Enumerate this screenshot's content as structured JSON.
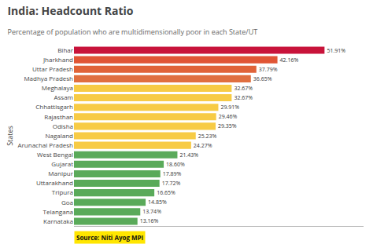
{
  "chart_data": {
    "type": "bar",
    "orientation": "horizontal",
    "title": "India: Headcount Ratio",
    "subtitle": "Percentage of population who are multidimensionally poor in each State/UT",
    "ylabel": "States",
    "annotations": [
      "Source: Niti Ayog MPI"
    ],
    "categories": [
      "Bihar",
      "Jharkhand",
      "Uttar Pradesh",
      "Madhya Pradesh",
      "Meghalaya",
      "Assam",
      "Chhattisgarh",
      "Rajasthan",
      "Odisha",
      "Nagaland",
      "Arunachal Pradesh",
      "West Bengal",
      "Gujarat",
      "Manipur",
      "Uttarakhand",
      "Tripura",
      "Goa",
      "Telangana",
      "Karnataka"
    ],
    "values": [
      51.91,
      42.16,
      37.79,
      36.65,
      32.67,
      32.67,
      29.91,
      29.46,
      29.35,
      25.23,
      24.27,
      21.43,
      18.6,
      17.89,
      17.72,
      16.65,
      14.85,
      13.74,
      13.16
    ],
    "value_labels": [
      "51.91%",
      "42.16%",
      "37.79%",
      "36.65%",
      "32.67%",
      "32.67%",
      "29.91%",
      "29.46%",
      "29.35%",
      "25.23%",
      "24.27%",
      "21.43%",
      "18.60%",
      "17.89%",
      "17.72%",
      "16.65%",
      "14.85%",
      "13.74%",
      "13.16%"
    ],
    "colors": [
      "#c8133a",
      "#e05535",
      "#e06338",
      "#e06f40",
      "#f7cb45",
      "#f7cb45",
      "#f7cb45",
      "#f7cb45",
      "#f7cb45",
      "#f7cb45",
      "#f7cb45",
      "#5aaa5a",
      "#5aaa5a",
      "#5aaa5a",
      "#5aaa5a",
      "#5aaa5a",
      "#5aaa5a",
      "#5aaa5a",
      "#5aaa5a"
    ],
    "xlim": [
      0,
      60
    ],
    "data_labels": true,
    "tick_labels": "y",
    "grid": false
  }
}
